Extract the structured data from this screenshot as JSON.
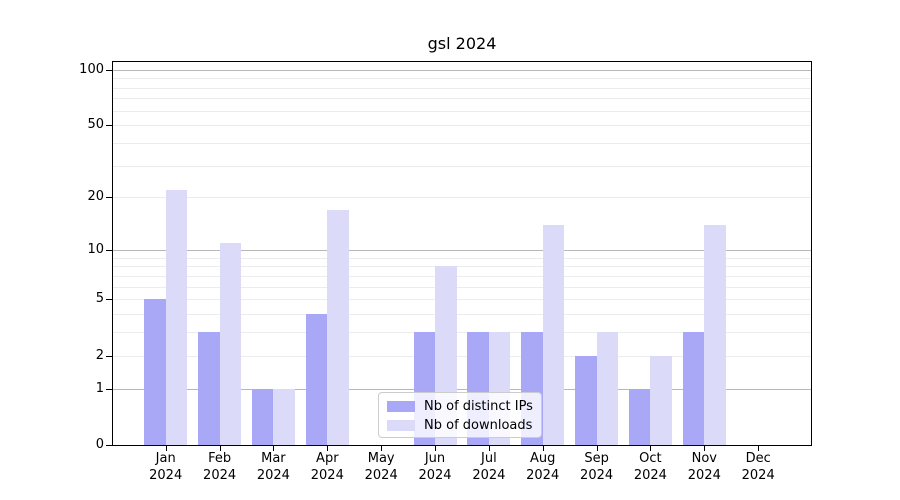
{
  "chart_data": {
    "type": "bar",
    "title": "gsl 2024",
    "categories": [
      "Jan",
      "Feb",
      "Mar",
      "Apr",
      "May",
      "Jun",
      "Jul",
      "Aug",
      "Sep",
      "Oct",
      "Nov",
      "Dec"
    ],
    "category_second_line": "2024",
    "series": [
      {
        "name": "Nb of distinct IPs",
        "color": "#a8a8f7",
        "values": [
          5,
          3,
          1,
          4,
          0,
          3,
          3,
          3,
          2,
          1,
          3,
          0
        ]
      },
      {
        "name": "Nb of downloads",
        "color": "#dbdbf9",
        "values": [
          22,
          11,
          1,
          17,
          0,
          8,
          3,
          14,
          3,
          2,
          14,
          0
        ]
      }
    ],
    "xlabel": "",
    "ylabel": "",
    "y_scale": "log10(1+v)",
    "ylim": [
      0,
      110
    ],
    "y_ticks": [
      {
        "value": 100,
        "label": "100"
      },
      {
        "value": 50,
        "label": "50"
      },
      {
        "value": 20,
        "label": "20"
      },
      {
        "value": 10,
        "label": "10"
      },
      {
        "value": 5,
        "label": "5"
      },
      {
        "value": 2,
        "label": "2"
      },
      {
        "value": 1,
        "label": "1"
      },
      {
        "value": 0,
        "label": "0"
      }
    ],
    "major_gridlines": [
      1,
      10,
      100
    ],
    "minor_gridlines": [
      2,
      3,
      4,
      5,
      6,
      7,
      8,
      9,
      20,
      30,
      40,
      50,
      60,
      70,
      80,
      90
    ],
    "grid": "on",
    "legend_position": "lower center",
    "colors": {
      "major_grid": "#b7b7b7",
      "minor_grid": "#ececec",
      "axis": "#000000",
      "background": "#ffffff"
    }
  }
}
